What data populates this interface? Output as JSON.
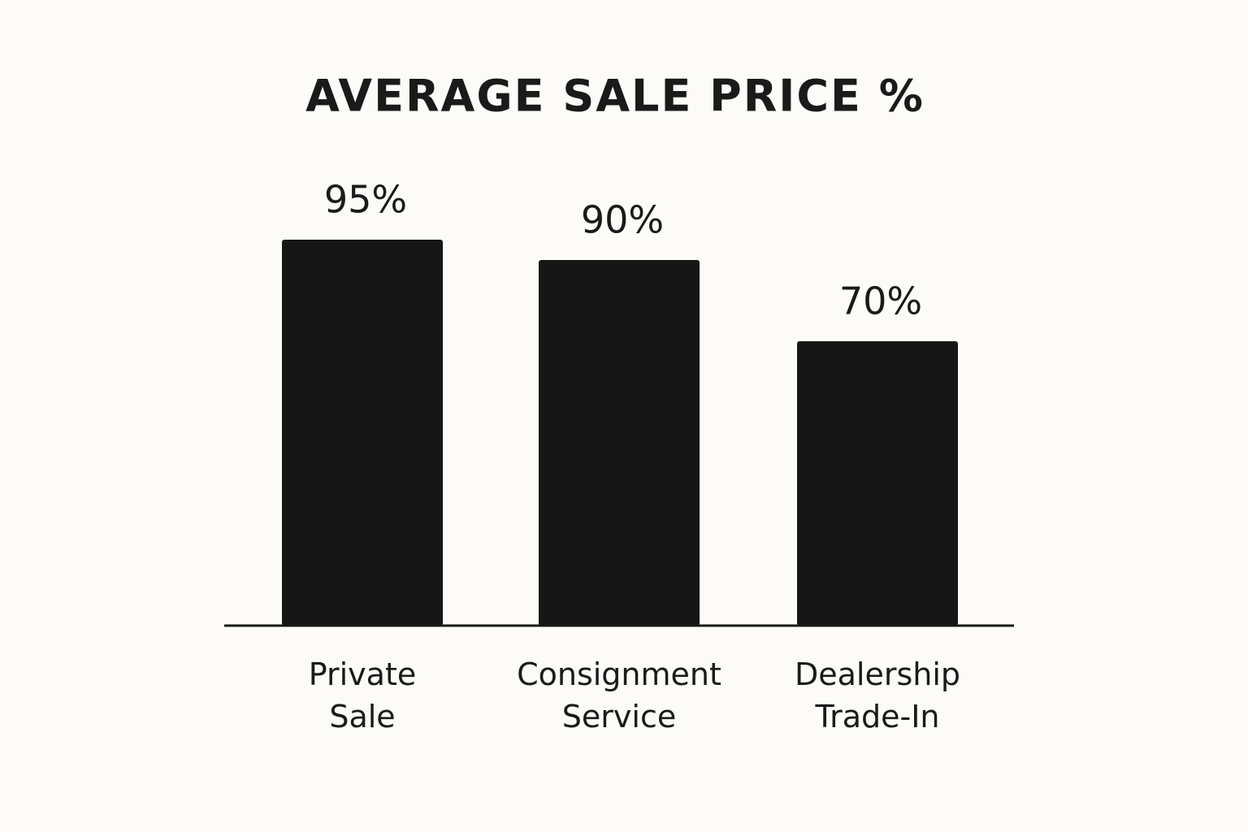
{
  "chart_data": {
    "type": "bar",
    "title": "AVERAGE SALE PRICE %",
    "categories": [
      "Private Sale",
      "Consignment Service",
      "Dealership Trade-In"
    ],
    "values": [
      95,
      90,
      70
    ],
    "value_labels": [
      "95%",
      "90%",
      "70%"
    ],
    "color": "#161616",
    "ylim": [
      0,
      100
    ]
  }
}
